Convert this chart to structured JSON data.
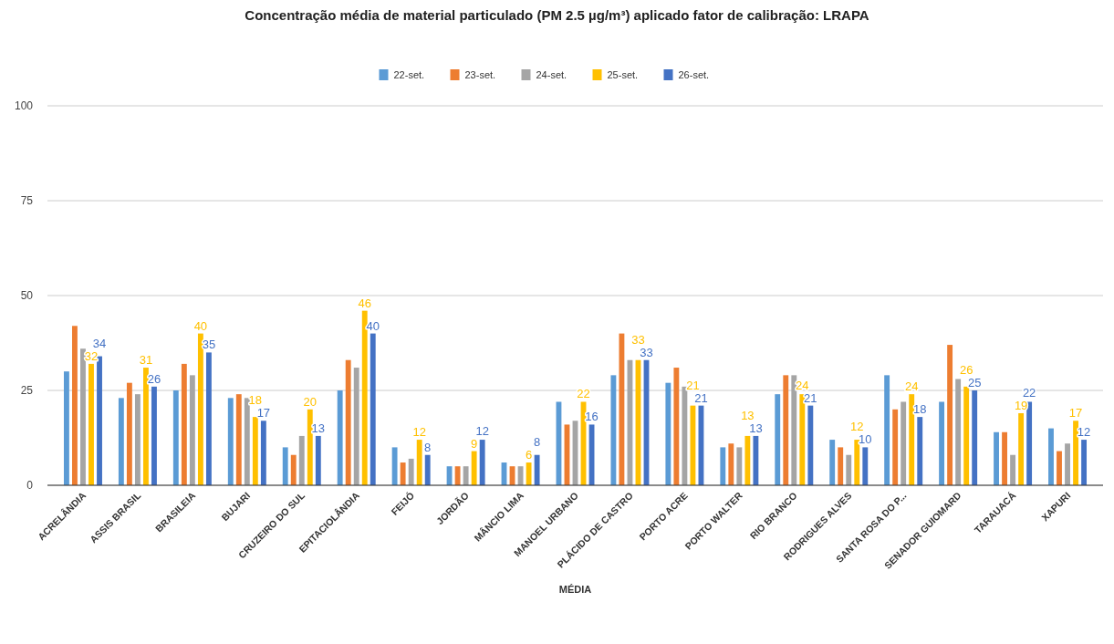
{
  "chart_data": {
    "type": "bar",
    "title": "Concentração média de material particulado (PM 2.5 µg/m³) aplicado fator de calibração: LRAPA",
    "xlabel": "MÉDIA",
    "categories": [
      "ACRELÂNDIA",
      "ASSIS BRASIL",
      "BRASILEIA",
      "BUJARI",
      "CRUZEIRO DO SUL",
      "EPITACIOLÂNDIA",
      "FEIJÓ",
      "JORDÃO",
      "MÂNCIO LIMA",
      "MANOEL URBANO",
      "PLÁCIDO DE CASTRO",
      "PORTO ACRE",
      "PORTO WALTER",
      "RIO BRANCO",
      "RODRIGUES ALVES",
      "SANTA ROSA DO P...",
      "SENADOR GUIOMARD",
      "TARAUACÁ",
      "XAPURI"
    ],
    "series": [
      {
        "name": "22-set.",
        "color": "#5b9bd5",
        "values": [
          30,
          23,
          25,
          23,
          10,
          25,
          10,
          5,
          6,
          22,
          29,
          27,
          10,
          24,
          12,
          29,
          22,
          14,
          15
        ]
      },
      {
        "name": "23-set.",
        "color": "#ed7d31",
        "values": [
          42,
          27,
          32,
          24,
          8,
          33,
          6,
          5,
          5,
          16,
          40,
          31,
          11,
          29,
          10,
          20,
          37,
          14,
          9
        ]
      },
      {
        "name": "24-set.",
        "color": "#a5a5a5",
        "values": [
          36,
          24,
          29,
          23,
          13,
          31,
          7,
          5,
          5,
          17,
          33,
          26,
          10,
          29,
          8,
          22,
          28,
          8,
          11
        ]
      },
      {
        "name": "25-set.",
        "color": "#ffc000",
        "values": [
          32,
          31,
          40,
          18,
          20,
          46,
          12,
          9,
          6,
          22,
          33,
          21,
          13,
          24,
          12,
          24,
          26,
          19,
          17
        ],
        "value_labels": [
          "32",
          "31",
          "40",
          "18",
          "20",
          "46",
          "12",
          "9",
          "6",
          "22",
          "33",
          "21",
          "13",
          "24",
          "12",
          "24",
          "26",
          "19",
          "17"
        ]
      },
      {
        "name": "26-set.",
        "color": "#4472c4",
        "values": [
          34,
          26,
          35,
          17,
          13,
          40,
          8,
          12,
          8,
          16,
          33,
          21,
          13,
          21,
          10,
          18,
          25,
          22,
          12
        ],
        "value_labels": [
          "34",
          "26",
          "35",
          "17",
          "13",
          "40",
          "8",
          "12",
          "8",
          "16",
          "33",
          "21",
          "13",
          "21",
          "10",
          "18",
          "25",
          "22",
          "12"
        ]
      }
    ],
    "ylim": [
      0,
      100
    ],
    "yticks": [
      0,
      25,
      50,
      75,
      100
    ],
    "grid": "y",
    "legend": "top"
  }
}
